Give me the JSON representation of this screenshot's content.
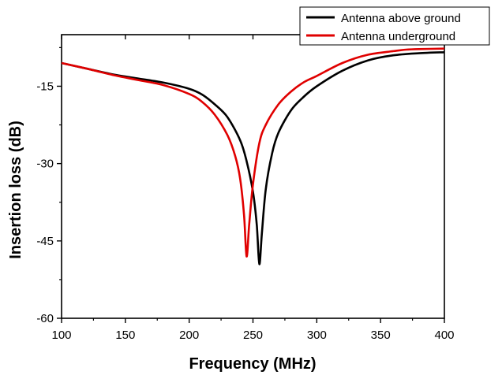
{
  "chart_data": {
    "type": "line",
    "xlabel": "Frequency (MHz)",
    "ylabel": "Insertion loss (dB)",
    "xlim": [
      100,
      400
    ],
    "ylim": [
      -60,
      -5
    ],
    "xticks": [
      100,
      150,
      200,
      250,
      300,
      350,
      400
    ],
    "yticks": [
      -60,
      -45,
      -30,
      -15
    ],
    "grid": false,
    "legend_position": "top-right",
    "series": [
      {
        "name": "Antenna above ground",
        "color": "#000000",
        "x": [
          100,
          120,
          140,
          160,
          180,
          200,
          210,
          220,
          230,
          240,
          245,
          250,
          253,
          255,
          257,
          260,
          265,
          270,
          280,
          290,
          300,
          320,
          340,
          360,
          380,
          400
        ],
        "y": [
          -10.5,
          -11.6,
          -12.7,
          -13.5,
          -14.3,
          -15.5,
          -16.6,
          -18.5,
          -21.0,
          -25.5,
          -29.5,
          -35.5,
          -42.0,
          -49.5,
          -43.5,
          -35.0,
          -28.0,
          -24.0,
          -19.6,
          -17.0,
          -15.0,
          -12.0,
          -10.0,
          -9.0,
          -8.6,
          -8.4
        ]
      },
      {
        "name": "Antenna underground",
        "color": "#e00000",
        "x": [
          100,
          120,
          140,
          160,
          180,
          200,
          210,
          220,
          230,
          236,
          240,
          243,
          245,
          247,
          250,
          255,
          260,
          270,
          280,
          290,
          300,
          320,
          340,
          360,
          370,
          380,
          400
        ],
        "y": [
          -10.5,
          -11.6,
          -12.8,
          -13.8,
          -14.8,
          -16.5,
          -18.0,
          -20.5,
          -24.5,
          -28.5,
          -33.0,
          -40.0,
          -48.0,
          -42.0,
          -34.0,
          -26.0,
          -22.5,
          -18.5,
          -16.0,
          -14.2,
          -13.0,
          -10.5,
          -8.9,
          -8.2,
          -7.9,
          -7.8,
          -7.7
        ]
      }
    ]
  }
}
